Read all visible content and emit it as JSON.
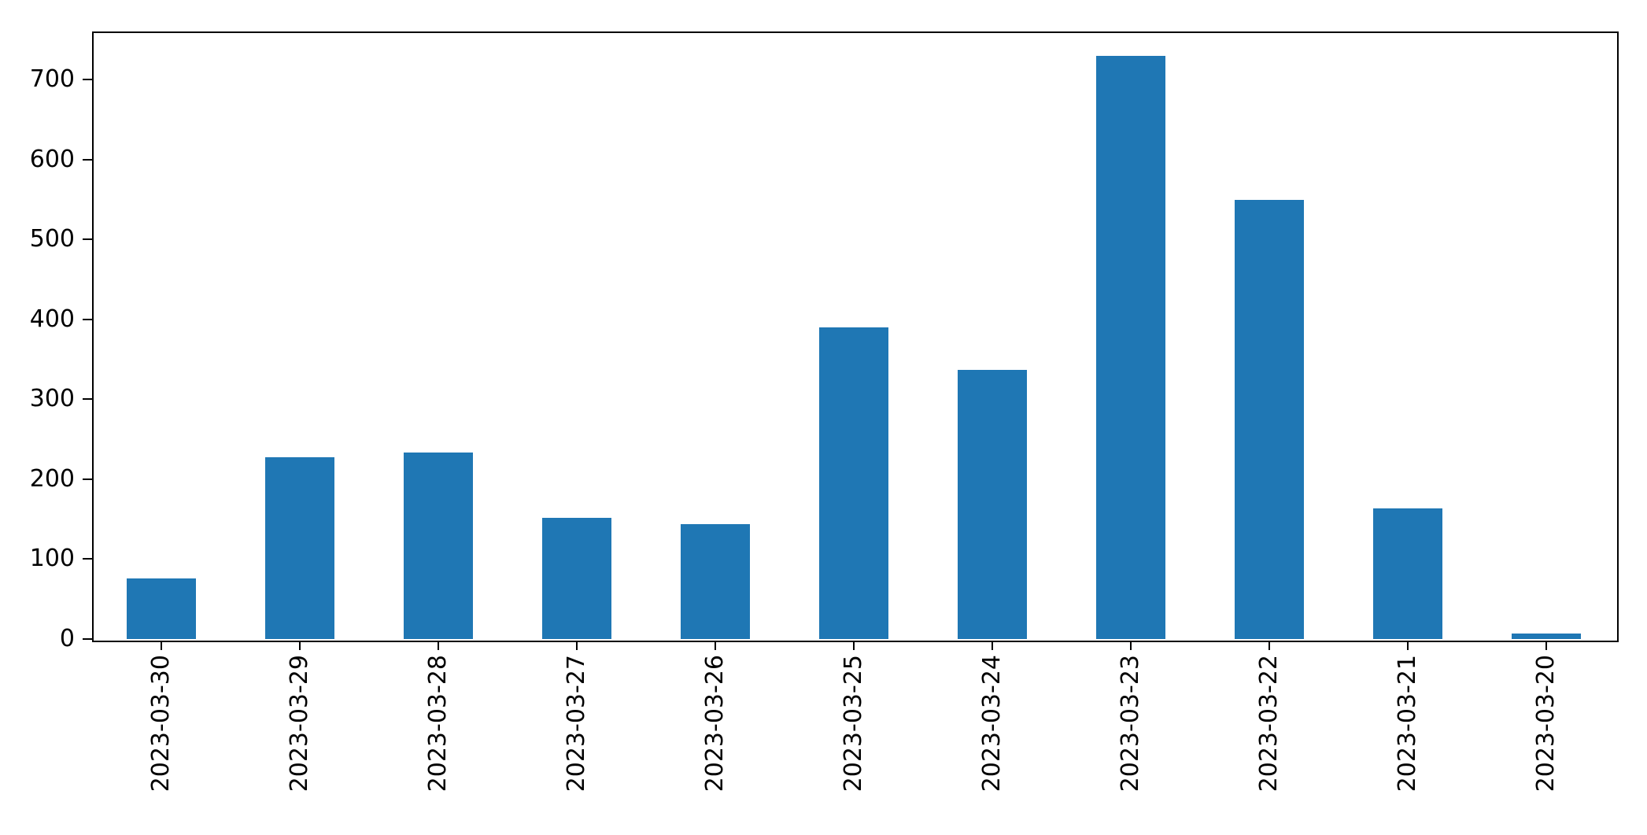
{
  "chart_data": {
    "type": "bar",
    "title": "",
    "xlabel": "",
    "ylabel": "",
    "categories": [
      "2023-03-30",
      "2023-03-29",
      "2023-03-28",
      "2023-03-27",
      "2023-03-26",
      "2023-03-25",
      "2023-03-24",
      "2023-03-23",
      "2023-03-22",
      "2023-03-21",
      "2023-03-20"
    ],
    "values": [
      76,
      227,
      233,
      152,
      144,
      390,
      337,
      729,
      549,
      163,
      7
    ],
    "yticks": [
      0,
      100,
      200,
      300,
      400,
      500,
      600,
      700
    ],
    "ylim": [
      0,
      760
    ],
    "bar_color": "#1f77b4",
    "bar_relative_width": 0.5,
    "grid": false,
    "legend": "none",
    "x_tick_label_rotation_deg": 90
  }
}
